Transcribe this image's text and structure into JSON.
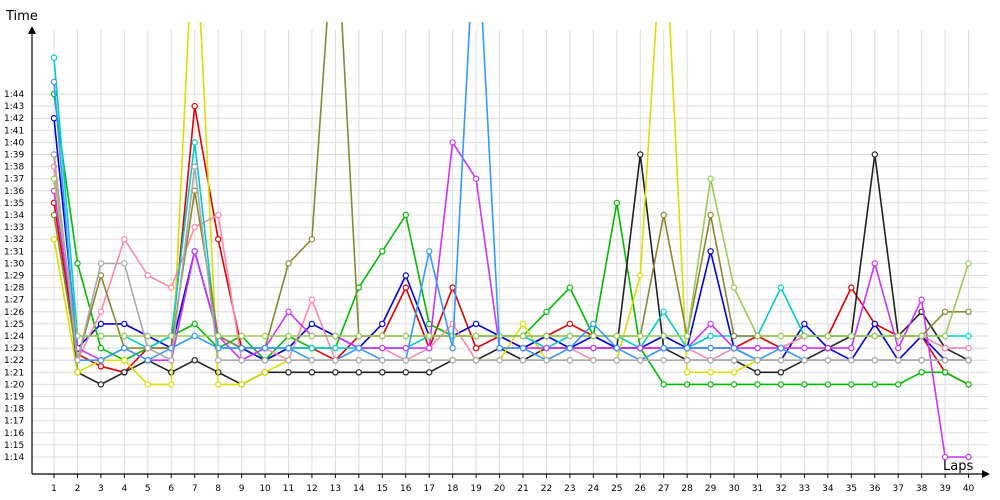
{
  "chart_data": {
    "type": "line",
    "title": "",
    "xlabel": "Laps",
    "ylabel": "Time",
    "grid": true,
    "legend": "none",
    "x_ticks": [
      "1",
      "2",
      "3",
      "4",
      "5",
      "6",
      "7",
      "8",
      "9",
      "10",
      "11",
      "12",
      "13",
      "14",
      "15",
      "16",
      "17",
      "18",
      "19",
      "20",
      "21",
      "22",
      "23",
      "24",
      "25",
      "26",
      "27",
      "28",
      "29",
      "30",
      "31",
      "32",
      "33",
      "34",
      "35",
      "36",
      "37",
      "38",
      "39",
      "40"
    ],
    "y_ticks": [
      "1:14",
      "1:15",
      "1:16",
      "1:17",
      "1:18",
      "1:19",
      "1:20",
      "1:21",
      "1:22",
      "1:23",
      "1:24",
      "1:25",
      "1:26",
      "1:27",
      "1:28",
      "1:29",
      "1:30",
      "1:31",
      "1:32",
      "1:33",
      "1:34",
      "1:35",
      "1:36",
      "1:37",
      "1:38",
      "1:39",
      "1:40",
      "1:41",
      "1:42",
      "1:43",
      "1:44"
    ],
    "xlim": [
      1,
      40
    ],
    "ylim_seconds": [
      73,
      118
    ],
    "series": [
      {
        "color": "#e00000",
        "values": [
          95,
          82.5,
          81.5,
          81,
          83,
          83,
          103,
          92,
          83,
          82,
          83,
          83,
          82,
          84,
          84,
          88,
          83,
          88,
          83,
          84,
          83,
          84,
          85,
          84,
          83,
          83,
          83,
          83,
          83,
          83,
          84,
          83,
          84,
          84,
          88,
          85,
          84,
          84,
          81,
          80
        ]
      },
      {
        "color": "#0000dd",
        "values": [
          102,
          83,
          85,
          85,
          84,
          83,
          91,
          84,
          83,
          82,
          83,
          85,
          84,
          83,
          85,
          89,
          84,
          84,
          85,
          84,
          83,
          84,
          83,
          84,
          83,
          83,
          84,
          83,
          91,
          83,
          82,
          82,
          85,
          83,
          82,
          85,
          82,
          84,
          82,
          82
        ]
      },
      {
        "color": "#00bb00",
        "values": [
          104,
          90,
          83,
          82,
          83,
          84,
          85,
          83,
          84,
          82,
          84,
          83,
          83,
          88,
          91,
          94,
          85,
          84,
          84,
          84,
          84,
          86,
          88,
          84,
          95,
          83,
          80,
          80,
          80,
          80,
          80,
          80,
          80,
          80,
          80,
          80,
          80,
          81,
          81,
          80
        ]
      },
      {
        "color": "#222222",
        "values": [
          99,
          81,
          80,
          81,
          82,
          81,
          82,
          81,
          80,
          81,
          81,
          81,
          81,
          81,
          81,
          81,
          81,
          82,
          82,
          83,
          82,
          83,
          83,
          83,
          83,
          99,
          83,
          82,
          82,
          82,
          81,
          81,
          82,
          83,
          84,
          99,
          84,
          86,
          83,
          82
        ]
      },
      {
        "color": "#dddd00",
        "values": [
          92,
          81,
          82,
          82,
          80,
          80,
          120,
          80,
          80,
          81,
          82,
          82,
          82,
          82,
          82,
          82,
          82,
          82,
          82,
          82,
          85,
          82,
          82,
          82,
          82,
          89,
          120,
          81,
          81,
          81,
          82,
          82,
          82,
          82,
          82,
          82,
          82,
          82,
          82,
          82
        ]
      },
      {
        "color": "#ff88aa",
        "values": [
          98,
          82,
          86,
          92,
          89,
          88,
          93,
          94,
          82,
          83,
          82,
          87,
          82,
          83,
          83,
          82,
          83,
          85,
          82,
          82,
          82,
          82,
          83,
          82,
          82,
          82,
          83,
          83,
          82,
          83,
          83,
          83,
          84,
          84,
          84,
          84,
          84,
          84,
          83,
          83
        ]
      },
      {
        "color": "#00cccc",
        "values": [
          107,
          84,
          84,
          84,
          83,
          84,
          100,
          83,
          83,
          83,
          83,
          83,
          83,
          83,
          83,
          83,
          84,
          84,
          84,
          84,
          84,
          83,
          84,
          84,
          84,
          83,
          86,
          83,
          84,
          84,
          84,
          88,
          84,
          84,
          84,
          84,
          84,
          84,
          84,
          84
        ]
      },
      {
        "color": "#cc33ff",
        "values": [
          96,
          83,
          82,
          83,
          82,
          82,
          91,
          84,
          82,
          83,
          86,
          84,
          84,
          83,
          83,
          83,
          83,
          100,
          97,
          83,
          83,
          83,
          83,
          83,
          83,
          83,
          83,
          83,
          85,
          83,
          83,
          83,
          83,
          83,
          83,
          90,
          83,
          87,
          74,
          74
        ]
      },
      {
        "color": "#888833",
        "values": [
          94,
          82,
          89,
          83,
          83,
          83,
          96,
          84,
          83,
          83,
          90,
          92,
          120,
          84,
          84,
          84,
          84,
          84,
          84,
          84,
          84,
          84,
          84,
          84,
          84,
          84,
          94,
          84,
          94,
          84,
          84,
          84,
          84,
          84,
          84,
          84,
          84,
          84,
          86,
          86
        ]
      },
      {
        "color": "#99cc55",
        "values": [
          97,
          84,
          84,
          84,
          84,
          84,
          84,
          84,
          84,
          84,
          84,
          84,
          84,
          84,
          84,
          84,
          84,
          84,
          84,
          84,
          84,
          84,
          84,
          84,
          84,
          84,
          84,
          84,
          97,
          88,
          84,
          84,
          84,
          84,
          84,
          84,
          84,
          84,
          84,
          90
        ]
      },
      {
        "color": "#3399ff",
        "values": [
          105,
          82,
          82,
          83,
          82,
          83,
          84,
          83,
          83,
          83,
          83,
          82,
          82,
          83,
          82,
          82,
          91,
          83,
          120,
          83,
          83,
          82,
          83,
          85,
          83,
          82,
          83,
          83,
          83,
          83,
          82,
          83,
          82,
          82,
          82,
          82,
          82,
          82,
          82,
          82
        ]
      },
      {
        "color": "#aaaaaa",
        "values": [
          99,
          82,
          90,
          90,
          83,
          82,
          98,
          82,
          82,
          82,
          82,
          82,
          82,
          82,
          82,
          82,
          82,
          82,
          82,
          82,
          82,
          82,
          82,
          82,
          82,
          82,
          82,
          82,
          82,
          82,
          82,
          82,
          82,
          82,
          82,
          82,
          82,
          82,
          82,
          82
        ]
      }
    ]
  }
}
